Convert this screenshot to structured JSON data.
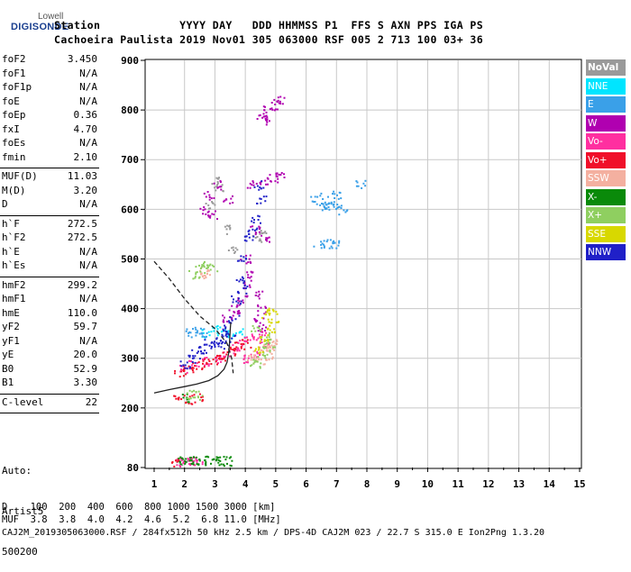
{
  "logo": {
    "top": "Lowell",
    "main": "DIGISONDE"
  },
  "header": {
    "line1": "Station            YYYY DAY   DDD HHMMSS P1  FFS S AXN PPS IGA PS",
    "line2": "Cachoeira Paulista 2019 Nov01 305 063000 RSF 005 2 713 100 03+ 36"
  },
  "params": [
    {
      "k": "foF2",
      "v": "3.450"
    },
    {
      "k": "foF1",
      "v": "N/A"
    },
    {
      "k": "foF1p",
      "v": "N/A"
    },
    {
      "k": "foE",
      "v": "N/A"
    },
    {
      "k": "foEp",
      "v": "0.36"
    },
    {
      "k": "fxI",
      "v": "4.70"
    },
    {
      "k": "foEs",
      "v": "N/A"
    },
    {
      "k": "fmin",
      "v": "2.10"
    },
    {
      "k": "MUF(D)",
      "v": "11.03"
    },
    {
      "k": "M(D)",
      "v": "3.20"
    },
    {
      "k": "D",
      "v": "N/A"
    },
    {
      "k": "h`F",
      "v": "272.5"
    },
    {
      "k": "h`F2",
      "v": "272.5"
    },
    {
      "k": "h`E",
      "v": "N/A"
    },
    {
      "k": "h`Es",
      "v": "N/A"
    },
    {
      "k": "hmF2",
      "v": "299.2"
    },
    {
      "k": "hmF1",
      "v": "N/A"
    },
    {
      "k": "hmE",
      "v": "110.0"
    },
    {
      "k": "yF2",
      "v": "59.7"
    },
    {
      "k": "yF1",
      "v": "N/A"
    },
    {
      "k": "yE",
      "v": "20.0"
    },
    {
      "k": "B0",
      "v": "52.9"
    },
    {
      "k": "B1",
      "v": "3.30"
    },
    {
      "k": "C-level",
      "v": "22"
    }
  ],
  "auto": {
    "line1": "Auto:",
    "line2": "Artist5",
    "line3": "500200"
  },
  "legend": [
    {
      "label": "NoVal",
      "bg": "#9a9a9a",
      "fg": "#ffffff"
    },
    {
      "label": "NNE",
      "bg": "#00e5ff",
      "fg": "#ffffff"
    },
    {
      "label": "E",
      "bg": "#3aa0e8",
      "fg": "#ffffff"
    },
    {
      "label": "W",
      "bg": "#b000b0",
      "fg": "#ffffff"
    },
    {
      "label": "Vo-",
      "bg": "#ff2fa0",
      "fg": "#ffffff"
    },
    {
      "label": "Vo+",
      "bg": "#f0102a",
      "fg": "#ffffff"
    },
    {
      "label": "SSW",
      "bg": "#f4b0a0",
      "fg": "#ffffff"
    },
    {
      "label": "X-",
      "bg": "#0a8a0a",
      "fg": "#ffffff"
    },
    {
      "label": "X+",
      "bg": "#8fcf60",
      "fg": "#ffffff"
    },
    {
      "label": "SSE",
      "bg": "#d8d800",
      "fg": "#ffffff"
    },
    {
      "label": "NNW",
      "bg": "#2020c8",
      "fg": "#ffffff"
    }
  ],
  "footer": {
    "line1": "D    100  200  400  600  800 1000 1500 3000 [km]",
    "line2": "MUF  3.8  3.8  4.0  4.2  4.6  5.2  6.8 11.0 [MHz]",
    "line3": "CAJ2M_2019305063000.RSF / 284fx512h 50 kHz 2.5 km / DPS-4D CAJ2M 023 / 22.7 S 315.0 E Ion2Png 1.3.20"
  },
  "chart_data": {
    "type": "scatter",
    "title": "",
    "xlabel": "",
    "ylabel": "",
    "xlim": [
      1,
      15
    ],
    "ylim": [
      80,
      900
    ],
    "x_ticks": [
      "1",
      "2",
      "3",
      "4",
      "5",
      "6",
      "7",
      "8",
      "9",
      "10",
      "11",
      "12",
      "13",
      "14",
      "15"
    ],
    "y_ticks": [
      "80",
      "200",
      "300",
      "400",
      "500",
      "600",
      "700",
      "800",
      "900"
    ],
    "grid": true,
    "legend_position": "right",
    "series": [
      {
        "name": "NoVal",
        "color": "#9a9a9a",
        "points": [
          [
            3.0,
            660
          ],
          [
            3.1,
            645
          ],
          [
            2.8,
            610
          ],
          [
            3.4,
            560
          ],
          [
            3.6,
            520
          ],
          [
            1.9,
            95
          ],
          [
            4.6,
            560
          ],
          [
            4.4,
            545
          ]
        ]
      },
      {
        "name": "NNE",
        "color": "#00e5ff",
        "points": [
          [
            3.0,
            360
          ],
          [
            3.2,
            355
          ],
          [
            2.7,
            352
          ],
          [
            3.5,
            350
          ],
          [
            3.8,
            352
          ]
        ]
      },
      {
        "name": "E",
        "color": "#3aa0e8",
        "points": [
          [
            6.3,
            625
          ],
          [
            6.5,
            615
          ],
          [
            6.8,
            620
          ],
          [
            7.0,
            630
          ],
          [
            6.6,
            605
          ],
          [
            6.9,
            610
          ],
          [
            7.2,
            600
          ],
          [
            6.4,
            530
          ],
          [
            6.7,
            532
          ],
          [
            7.0,
            530
          ],
          [
            7.8,
            652
          ],
          [
            2.2,
            352
          ],
          [
            2.4,
            356
          ],
          [
            2.6,
            352
          ]
        ]
      },
      {
        "name": "W",
        "color": "#b000b0",
        "points": [
          [
            4.5,
            790
          ],
          [
            4.7,
            800
          ],
          [
            4.6,
            780
          ],
          [
            5.1,
            820
          ],
          [
            5.0,
            810
          ],
          [
            4.2,
            650
          ],
          [
            4.6,
            658
          ],
          [
            4.9,
            665
          ],
          [
            5.1,
            670
          ],
          [
            2.8,
            630
          ],
          [
            3.0,
            650
          ],
          [
            2.6,
            600
          ],
          [
            2.9,
            590
          ],
          [
            3.4,
            620
          ],
          [
            4.3,
            560
          ],
          [
            4.6,
            540
          ],
          [
            4.0,
            500
          ],
          [
            4.2,
            470
          ],
          [
            4.4,
            430
          ],
          [
            4.1,
            450
          ],
          [
            3.9,
            420
          ],
          [
            3.7,
            400
          ],
          [
            3.4,
            380
          ],
          [
            3.6,
            390
          ],
          [
            4.4,
            380
          ],
          [
            4.5,
            400
          ],
          [
            4.5,
            360
          ]
        ]
      },
      {
        "name": "Vo-",
        "color": "#ff2fa0",
        "points": [
          [
            2.0,
            280
          ],
          [
            2.3,
            288
          ],
          [
            2.6,
            295
          ],
          [
            3.0,
            300
          ],
          [
            3.3,
            308
          ],
          [
            3.7,
            320
          ],
          [
            3.9,
            335
          ],
          [
            4.2,
            345
          ],
          [
            4.5,
            350
          ],
          [
            4.6,
            330
          ],
          [
            4.3,
            310
          ],
          [
            4.1,
            300
          ],
          [
            1.8,
            92
          ],
          [
            2.0,
            95
          ],
          [
            2.2,
            93
          ],
          [
            2.4,
            94
          ]
        ]
      },
      {
        "name": "Vo+",
        "color": "#f0102a",
        "points": [
          [
            1.8,
            272
          ],
          [
            2.1,
            278
          ],
          [
            2.4,
            285
          ],
          [
            2.7,
            292
          ],
          [
            3.0,
            298
          ],
          [
            3.2,
            305
          ],
          [
            3.5,
            315
          ],
          [
            3.8,
            325
          ],
          [
            4.0,
            330
          ],
          [
            1.8,
            220
          ],
          [
            2.1,
            218
          ],
          [
            2.4,
            222
          ],
          [
            1.7,
            92
          ]
        ]
      },
      {
        "name": "SSW",
        "color": "#f4b0a0",
        "points": [
          [
            4.2,
            300
          ],
          [
            4.4,
            310
          ],
          [
            4.6,
            320
          ],
          [
            4.8,
            325
          ],
          [
            4.9,
            335
          ],
          [
            4.7,
            305
          ],
          [
            4.5,
            295
          ],
          [
            2.5,
            470
          ],
          [
            2.7,
            475
          ]
        ]
      },
      {
        "name": "X-",
        "color": "#0a8a0a",
        "points": [
          [
            1.9,
            96
          ],
          [
            2.1,
            94
          ],
          [
            2.3,
            95
          ],
          [
            2.5,
            93
          ],
          [
            2.8,
            96
          ],
          [
            3.0,
            94
          ],
          [
            3.2,
            95
          ],
          [
            3.4,
            94
          ],
          [
            2.0,
            222
          ]
        ]
      },
      {
        "name": "X+",
        "color": "#8fcf60",
        "points": [
          [
            4.3,
            290
          ],
          [
            4.5,
            300
          ],
          [
            4.7,
            315
          ],
          [
            4.8,
            330
          ],
          [
            4.6,
            345
          ],
          [
            4.3,
            360
          ],
          [
            2.2,
            228
          ],
          [
            2.4,
            226
          ],
          [
            2.5,
            480
          ],
          [
            2.7,
            490
          ],
          [
            2.9,
            485
          ],
          [
            2.3,
            470
          ]
        ]
      },
      {
        "name": "SSE",
        "color": "#d8d800",
        "points": [
          [
            4.4,
            320
          ],
          [
            4.6,
            340
          ],
          [
            4.8,
            360
          ],
          [
            4.9,
            380
          ],
          [
            4.7,
            390
          ],
          [
            4.9,
            395
          ]
        ]
      },
      {
        "name": "NNW",
        "color": "#2020c8",
        "points": [
          [
            3.3,
            330
          ],
          [
            3.5,
            350
          ],
          [
            3.6,
            380
          ],
          [
            3.7,
            420
          ],
          [
            3.8,
            460
          ],
          [
            3.9,
            500
          ],
          [
            4.1,
            540
          ],
          [
            4.3,
            580
          ],
          [
            4.5,
            620
          ],
          [
            4.4,
            650
          ],
          [
            3.4,
            360
          ],
          [
            3.2,
            340
          ],
          [
            3.0,
            335
          ],
          [
            2.8,
            330
          ],
          [
            2.6,
            320
          ],
          [
            2.4,
            310
          ],
          [
            2.2,
            300
          ],
          [
            2.0,
            290
          ],
          [
            3.9,
            440
          ],
          [
            4.2,
            560
          ]
        ]
      }
    ],
    "lines": [
      {
        "name": "",
        "style": "dashed",
        "color": "#222222",
        "points": [
          [
            1.0,
            495
          ],
          [
            1.5,
            460
          ],
          [
            2.0,
            420
          ],
          [
            2.5,
            385
          ],
          [
            3.0,
            360
          ],
          [
            3.4,
            330
          ],
          [
            3.55,
            300
          ],
          [
            3.6,
            270
          ]
        ]
      },
      {
        "name": "",
        "style": "solid",
        "color": "#222222",
        "points": [
          [
            1.0,
            230
          ],
          [
            1.5,
            237
          ],
          [
            2.0,
            243
          ],
          [
            2.4,
            248
          ],
          [
            2.8,
            255
          ],
          [
            3.1,
            265
          ],
          [
            3.3,
            278
          ],
          [
            3.4,
            292
          ],
          [
            3.45,
            310
          ],
          [
            3.48,
            330
          ],
          [
            3.5,
            355
          ],
          [
            3.52,
            372
          ]
        ]
      }
    ]
  }
}
